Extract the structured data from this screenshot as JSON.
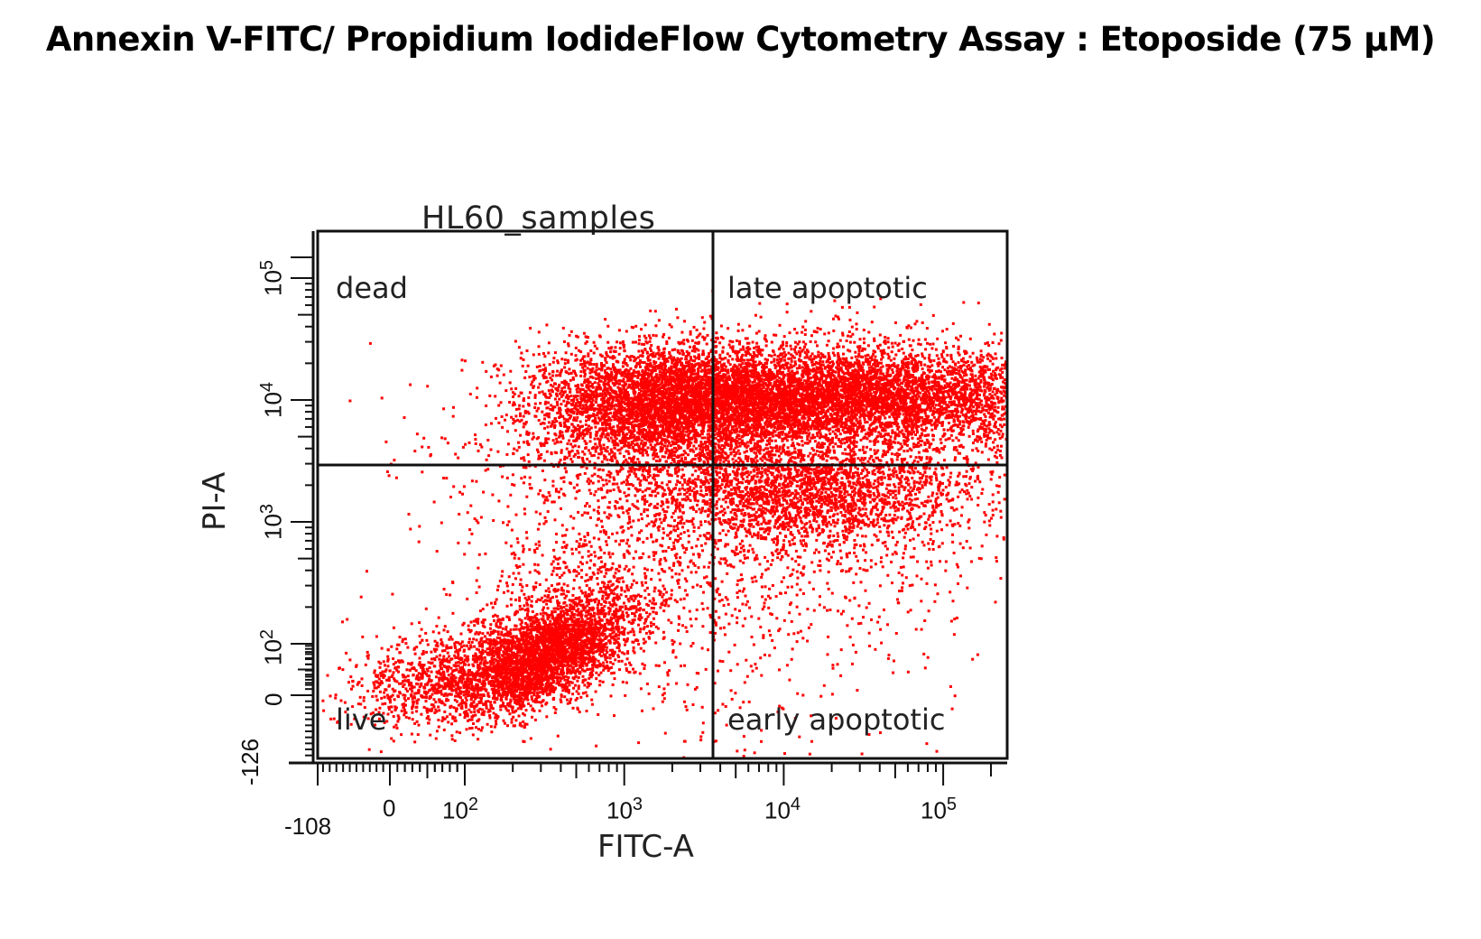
{
  "title": "Annexin V-FITC/ Propidium IodideFlow Cytometry Assay : Etoposide (75 µM)",
  "plot": {
    "sample_title": "HL60_samples",
    "quadrants": {
      "top_left": "dead",
      "top_right": "late apoptotic",
      "bottom_left": "live",
      "bottom_right": "early apoptotic"
    },
    "x_axis": {
      "label": "FITC-A",
      "min_label": "-108",
      "ticks": [
        {
          "base": "0",
          "exp": ""
        },
        {
          "base": "10",
          "exp": "2"
        },
        {
          "base": "10",
          "exp": "3"
        },
        {
          "base": "10",
          "exp": "4"
        },
        {
          "base": "10",
          "exp": "5"
        }
      ]
    },
    "y_axis": {
      "label": "PI-A",
      "min_label": "-126",
      "ticks": [
        {
          "base": "0",
          "exp": ""
        },
        {
          "base": "10",
          "exp": "2"
        },
        {
          "base": "10",
          "exp": "3"
        },
        {
          "base": "10",
          "exp": "4"
        },
        {
          "base": "10",
          "exp": "5"
        }
      ]
    },
    "dot_color": "#ff0000"
  },
  "chart_data": {
    "type": "scatter",
    "title": "Annexin V-FITC/ Propidium IodideFlow Cytometry Assay : Etoposide (75 µM)",
    "subtitle": "HL60_samples",
    "xlabel": "FITC-A",
    "ylabel": "PI-A",
    "x_scale": "biexponential",
    "y_scale": "biexponential",
    "xlim": [
      -108,
      250000
    ],
    "ylim": [
      -126,
      250000
    ],
    "x_ticks": [
      "-108",
      "0",
      "10^2",
      "10^3",
      "10^4",
      "10^5"
    ],
    "y_ticks": [
      "-126",
      "0",
      "10^2",
      "10^3",
      "10^4",
      "10^5"
    ],
    "quadrant_gate": {
      "x": 3000,
      "y": 3500
    },
    "quadrant_labels": [
      "dead",
      "late apoptotic",
      "live",
      "early apoptotic"
    ],
    "populations": [
      {
        "name": "live",
        "quadrant": "bottom_left",
        "center_fitc": 300,
        "center_pi": 80,
        "density": "high"
      },
      {
        "name": "late apoptotic",
        "quadrant": "top_right",
        "center_fitc": 20000,
        "center_pi": 11000,
        "density": "very high"
      },
      {
        "name": "dead / PI+ Annexin-low",
        "quadrant": "top_left",
        "center_fitc": 1500,
        "center_pi": 11000,
        "density": "high"
      },
      {
        "name": "early apoptotic",
        "quadrant": "bottom_right",
        "center_fitc": 12000,
        "center_pi": 1500,
        "density": "medium"
      }
    ],
    "grid": false,
    "legend": "none"
  }
}
